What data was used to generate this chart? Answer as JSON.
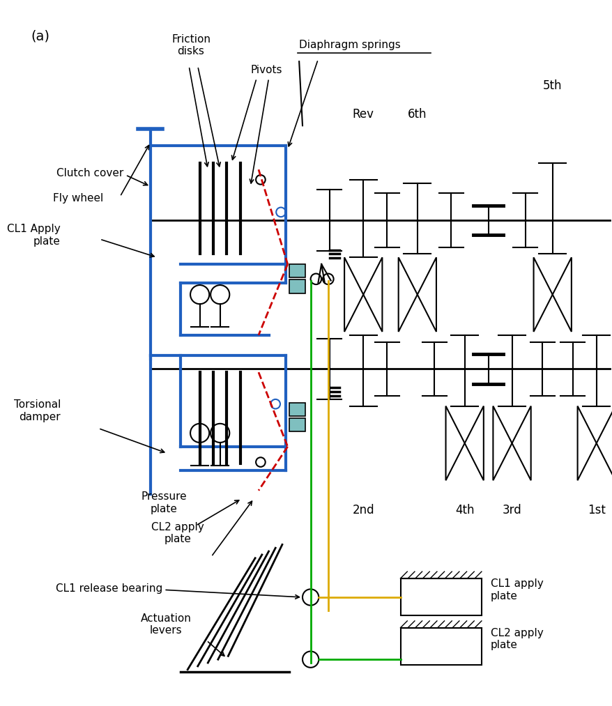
{
  "fig_width": 8.79,
  "fig_height": 10.13,
  "bg_color": "#ffffff",
  "blue": "#2060c0",
  "red_dashed": "#cc0000",
  "teal": "#7fbfbf",
  "green_line": "#00aa00",
  "orange_line": "#ddaa00",
  "black": "#000000",
  "labels": {
    "panel": "(a)",
    "friction_disks": "Friction\ndisks",
    "pivots": "Pivots",
    "diaphragm_springs": "Diaphragm springs",
    "clutch_cover": "Clutch cover",
    "fly_wheel": "Fly wheel",
    "cl1_apply": "CL1 Apply\nplate",
    "torsional_damper": "Torsional\ndamper",
    "pressure_plate": "Pressure\nplate",
    "cl2_apply": "CL2 apply\nplate",
    "cl1_release": "CL1 release bearing",
    "actuation_levers": "Actuation\nlevers",
    "rev": "Rev",
    "6th": "6th",
    "5th": "5th",
    "4th": "4th",
    "3rd": "3rd",
    "2nd": "2nd",
    "1st": "1st",
    "cl1_apply_plate_right": "CL1 apply\nplate",
    "cl2_apply_plate_right": "CL2 apply\nplate"
  }
}
